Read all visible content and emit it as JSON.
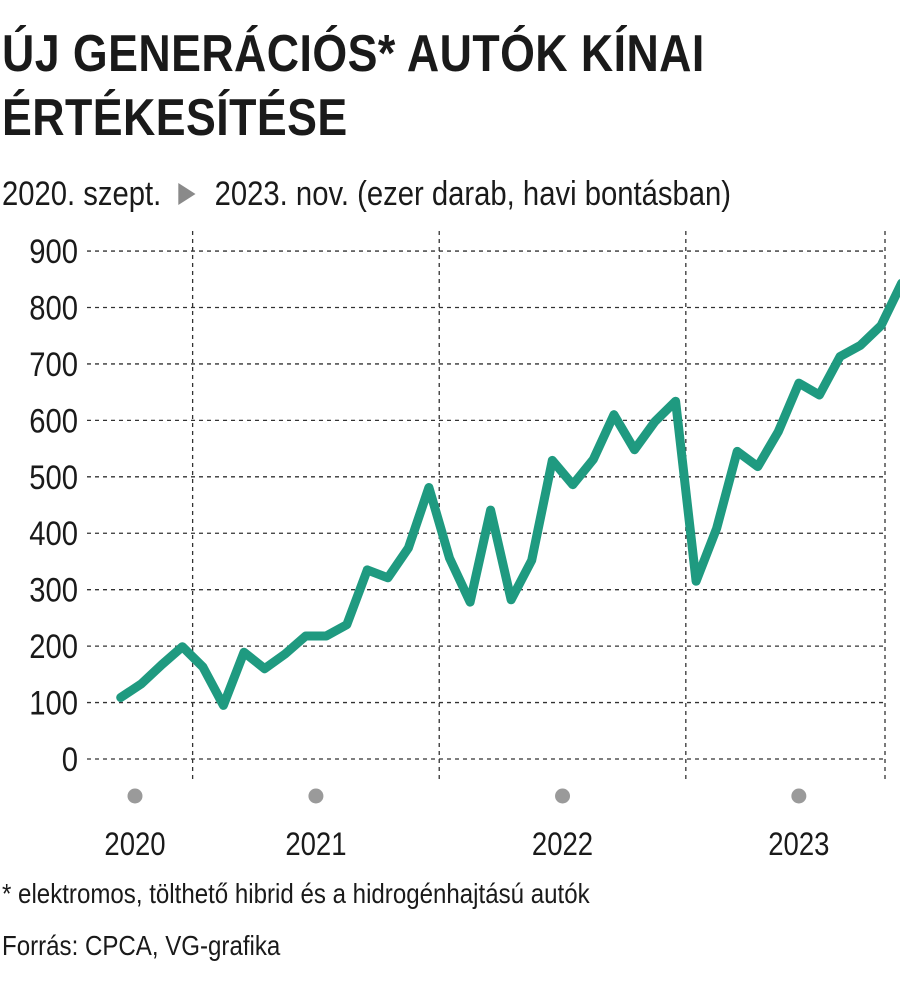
{
  "header": {
    "title_line1": "ÚJ GENERÁCIÓS* AUTÓK KÍNAI",
    "title_line2": "ÉRTÉKESÍTÉSE",
    "subtitle_start": "2020. szept.",
    "subtitle_end": "2023. nov. (ezer darab, havi bontásban)"
  },
  "footer": {
    "footnote": "* elektromos, tölthető hibrid és a hidrogénhajtású autók",
    "source": "Forrás: CPCA, VG-grafika"
  },
  "colors": {
    "line": "#1f9a80",
    "grid": "#333333",
    "year_dot": "#9a9a9a",
    "arrow": "#8a8a8a"
  },
  "chart_data": {
    "type": "line",
    "ylim": [
      0,
      900
    ],
    "yticks": [
      0,
      100,
      200,
      300,
      400,
      500,
      600,
      700,
      800,
      900
    ],
    "grid": true,
    "x_start": "2020-09",
    "x_end": "2023-11",
    "year_labels": [
      "2020",
      "2021",
      "2022",
      "2023"
    ],
    "series": [
      {
        "values": [
          109,
          133,
          167,
          199,
          163,
          95,
          189,
          160,
          186,
          218,
          218,
          238,
          335,
          321,
          374,
          481,
          356,
          278,
          441,
          282,
          352,
          529,
          486,
          531,
          610,
          548,
          598,
          634,
          315,
          409,
          545,
          518,
          580,
          666,
          645,
          713,
          733,
          768,
          843
        ]
      }
    ]
  }
}
